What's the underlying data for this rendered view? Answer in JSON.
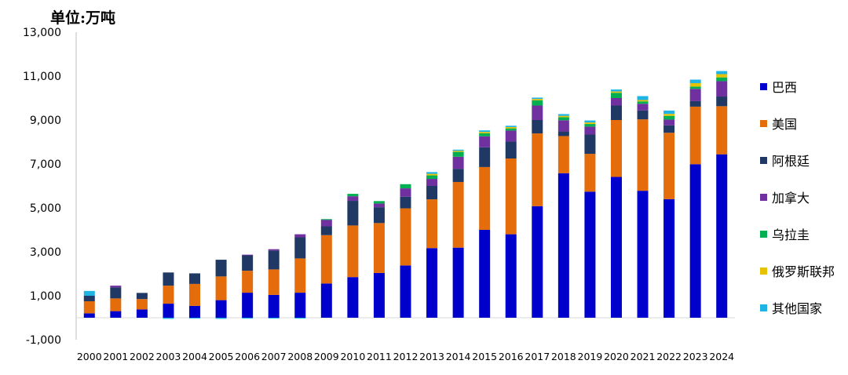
{
  "chart_data": {
    "type": "bar",
    "stacked": true,
    "title": "",
    "unit_label": "单位:万吨",
    "xlabel": "",
    "ylabel": "",
    "ylim": [
      -1000,
      13000
    ],
    "yticks": [
      -1000,
      1000,
      3000,
      5000,
      7000,
      9000,
      11000,
      13000
    ],
    "ytick_labels": [
      "-1,000",
      "1,000",
      "3,000",
      "5,000",
      "7,000",
      "9,000",
      "11,000",
      "13,000"
    ],
    "grid": false,
    "legend_position": "right",
    "categories": [
      "2000",
      "2001",
      "2002",
      "2003",
      "2004",
      "2005",
      "2006",
      "2007",
      "2008",
      "2009",
      "2010",
      "2011",
      "2012",
      "2013",
      "2014",
      "2015",
      "2016",
      "2017",
      "2018",
      "2019",
      "2020",
      "2021",
      "2022",
      "2023",
      "2024"
    ],
    "series": [
      {
        "name": "巴西",
        "color": "#0000CC",
        "values": [
          200,
          300,
          380,
          640,
          540,
          800,
          1140,
          1040,
          1140,
          1560,
          1850,
          2040,
          2380,
          3170,
          3190,
          4000,
          3800,
          5080,
          6580,
          5740,
          6410,
          5780,
          5400,
          6990,
          7440
        ]
      },
      {
        "name": "美国",
        "color": "#E46C0A",
        "values": [
          550,
          580,
          470,
          820,
          1000,
          1080,
          1000,
          1160,
          1560,
          2200,
          2350,
          2270,
          2600,
          2220,
          2990,
          2860,
          3450,
          3310,
          1690,
          1720,
          2590,
          3250,
          3020,
          2620,
          2190
        ]
      },
      {
        "name": "阿根廷",
        "color": "#1F3864",
        "values": [
          250,
          500,
          280,
          600,
          480,
          760,
          700,
          860,
          960,
          400,
          1120,
          720,
          530,
          610,
          600,
          900,
          770,
          610,
          210,
          880,
          660,
          410,
          340,
          250,
          440
        ]
      },
      {
        "name": "加拿大",
        "color": "#7030A0",
        "values": [
          0,
          80,
          0,
          0,
          0,
          0,
          30,
          60,
          140,
          300,
          210,
          170,
          380,
          320,
          550,
          500,
          500,
          660,
          510,
          360,
          340,
          300,
          260,
          560,
          700
        ]
      },
      {
        "name": "乌拉圭",
        "color": "#00B050",
        "values": [
          0,
          0,
          0,
          0,
          0,
          0,
          0,
          0,
          0,
          30,
          110,
          110,
          190,
          160,
          220,
          140,
          100,
          240,
          140,
          120,
          240,
          110,
          170,
          100,
          170
        ]
      },
      {
        "name": "俄罗斯联邦",
        "color": "#E5C100",
        "values": [
          0,
          0,
          0,
          0,
          0,
          0,
          0,
          0,
          0,
          0,
          0,
          0,
          0,
          70,
          50,
          60,
          60,
          60,
          60,
          70,
          60,
          60,
          90,
          160,
          150
        ]
      },
      {
        "name": "其他国家",
        "color": "#1FB4E4",
        "values": [
          220,
          0,
          0,
          -50,
          -30,
          -50,
          -40,
          -30,
          -30,
          0,
          0,
          0,
          0,
          80,
          50,
          70,
          60,
          60,
          80,
          90,
          90,
          180,
          150,
          160,
          140
        ]
      }
    ]
  }
}
